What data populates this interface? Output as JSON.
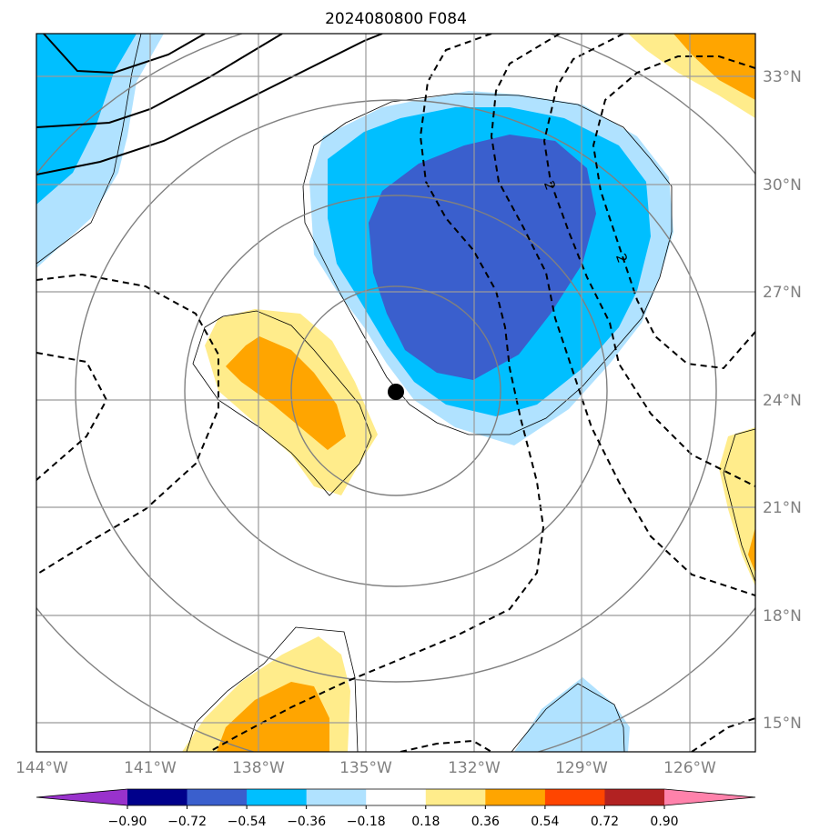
{
  "chart_data": {
    "type": "map",
    "title": "2024080800 F084",
    "lon_labels": [
      "144°W",
      "141°W",
      "138°W",
      "135°W",
      "132°W",
      "129°W",
      "126°W"
    ],
    "lat_labels": [
      "33°N",
      "30°N",
      "27°N",
      "24°N",
      "21°N",
      "18°N",
      "15°N"
    ],
    "extent": {
      "lon": [
        -144,
        -124
      ],
      "lat": [
        14.3,
        34.2
      ]
    },
    "colorbar": {
      "ticks": [
        "−0.90",
        "−0.72",
        "−0.54",
        "−0.36",
        "−0.18",
        "0.18",
        "0.36",
        "0.54",
        "0.72",
        "0.90"
      ],
      "colors": [
        "#9932cc",
        "#00008b",
        "#3a5fcd",
        "#00bfff",
        "#b0e2ff",
        "#ffffff",
        "#ffec8b",
        "#ffa500",
        "#ff4500",
        "#b22222",
        "#ff82ab"
      ],
      "extend": "both"
    },
    "contour_label": "2",
    "marker": {
      "name": "storm-center",
      "lon": -134.4,
      "lat": 24.2
    }
  }
}
